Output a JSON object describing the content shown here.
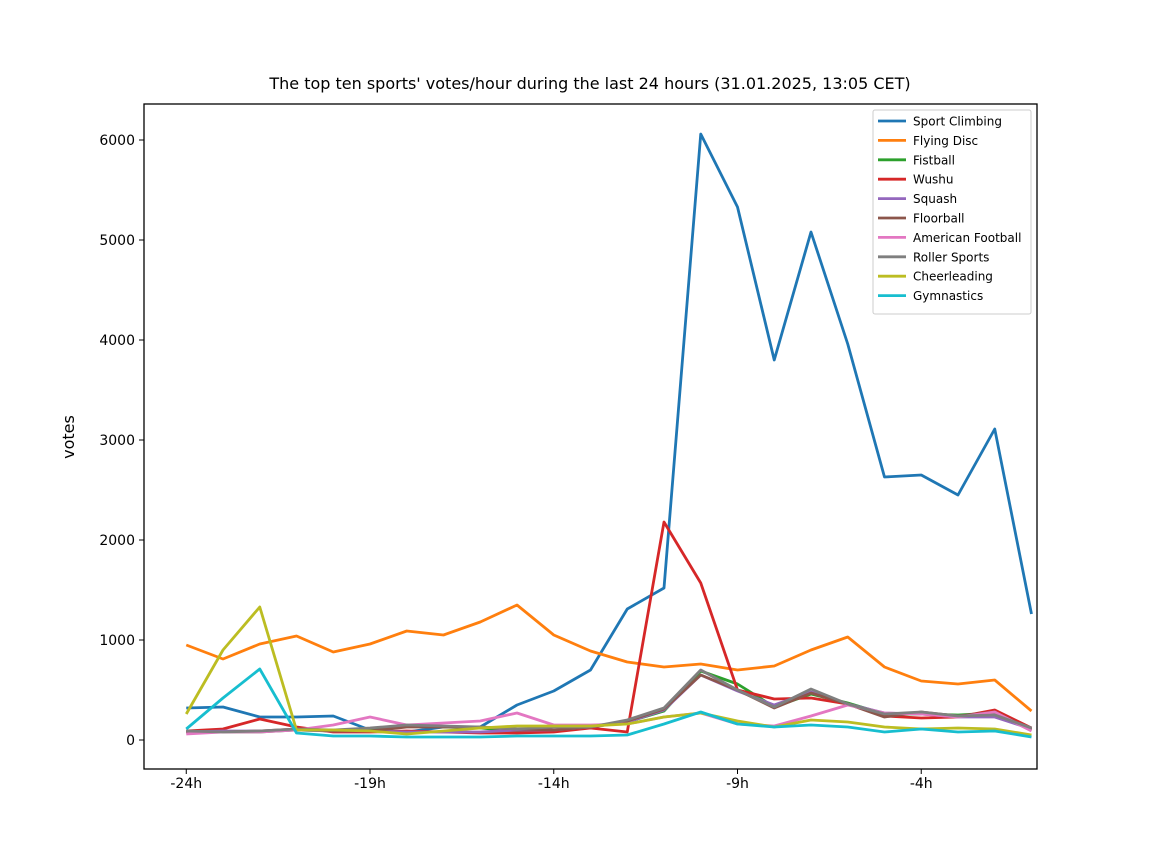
{
  "chart_data": {
    "type": "line",
    "title": "The top ten sports' votes/hour during the last 24 hours (31.01.2025, 13:05 CET)",
    "xlabel": "",
    "ylabel": "votes",
    "x": [
      -24,
      -23,
      -22,
      -21,
      -20,
      -19,
      -18,
      -17,
      -16,
      -15,
      -14,
      -13,
      -12,
      -11,
      -10,
      -9,
      -8,
      -7,
      -6,
      -5,
      -4,
      -3,
      -2,
      -1
    ],
    "xticks": [
      -24,
      -19,
      -14,
      -9,
      -4
    ],
    "xtick_labels": [
      "-24h",
      "-19h",
      "-14h",
      "-9h",
      "-4h"
    ],
    "yticks": [
      0,
      1000,
      2000,
      3000,
      4000,
      5000,
      6000
    ],
    "yticklabels": [
      "0",
      "1000",
      "2000",
      "3000",
      "4000",
      "5000",
      "6000"
    ],
    "xlim": [
      -25.15,
      -0.85
    ],
    "ylim": [
      -290,
      6360
    ],
    "grid": false,
    "legend_position": "top-right",
    "series": [
      {
        "name": "Sport Climbing",
        "color": "#1f77b4",
        "values": [
          320,
          330,
          230,
          230,
          240,
          100,
          80,
          130,
          130,
          350,
          490,
          700,
          1310,
          1520,
          6060,
          5330,
          3800,
          5080,
          3960,
          2630,
          2650,
          2450,
          3110,
          1260
        ]
      },
      {
        "name": "Flying Disc",
        "color": "#ff7f0e",
        "values": [
          950,
          810,
          960,
          1040,
          880,
          960,
          1090,
          1050,
          1180,
          1350,
          1050,
          890,
          780,
          730,
          760,
          700,
          740,
          900,
          1030,
          730,
          590,
          560,
          600,
          290
        ]
      },
      {
        "name": "Fistball",
        "color": "#2ca02c",
        "values": [
          80,
          80,
          80,
          100,
          90,
          100,
          150,
          130,
          120,
          90,
          100,
          130,
          180,
          290,
          690,
          560,
          330,
          460,
          370,
          260,
          260,
          250,
          270,
          110
        ]
      },
      {
        "name": "Wushu",
        "color": "#d62728",
        "values": [
          90,
          110,
          210,
          130,
          80,
          80,
          90,
          80,
          70,
          70,
          80,
          120,
          80,
          2180,
          1570,
          500,
          410,
          420,
          360,
          240,
          220,
          230,
          300,
          120
        ]
      },
      {
        "name": "Squash",
        "color": "#9467bd",
        "values": [
          80,
          90,
          90,
          100,
          90,
          90,
          80,
          80,
          80,
          100,
          100,
          130,
          180,
          300,
          650,
          490,
          350,
          480,
          360,
          270,
          260,
          230,
          230,
          110
        ]
      },
      {
        "name": "Floorball",
        "color": "#8c564b",
        "values": [
          80,
          80,
          90,
          110,
          90,
          90,
          130,
          130,
          130,
          110,
          100,
          130,
          190,
          310,
          650,
          500,
          320,
          470,
          360,
          230,
          280,
          240,
          280,
          100
        ]
      },
      {
        "name": "American Football",
        "color": "#e377c2",
        "values": [
          60,
          80,
          80,
          100,
          150,
          230,
          150,
          170,
          190,
          270,
          150,
          150,
          160,
          230,
          270,
          160,
          140,
          240,
          350,
          270,
          260,
          230,
          280,
          90
        ]
      },
      {
        "name": "Roller Sports",
        "color": "#7f7f7f",
        "values": [
          90,
          80,
          90,
          110,
          100,
          120,
          150,
          140,
          130,
          110,
          130,
          130,
          200,
          320,
          700,
          500,
          330,
          510,
          360,
          260,
          280,
          240,
          250,
          120
        ]
      },
      {
        "name": "Cheerleading",
        "color": "#bcbd22",
        "values": [
          260,
          900,
          1330,
          100,
          100,
          90,
          60,
          90,
          120,
          140,
          140,
          140,
          160,
          230,
          270,
          190,
          130,
          200,
          180,
          130,
          110,
          120,
          110,
          50
        ]
      },
      {
        "name": "Gymnastics",
        "color": "#17becf",
        "values": [
          110,
          420,
          710,
          70,
          40,
          40,
          30,
          30,
          30,
          40,
          40,
          40,
          50,
          160,
          280,
          160,
          130,
          150,
          130,
          80,
          110,
          80,
          90,
          30
        ]
      }
    ]
  }
}
